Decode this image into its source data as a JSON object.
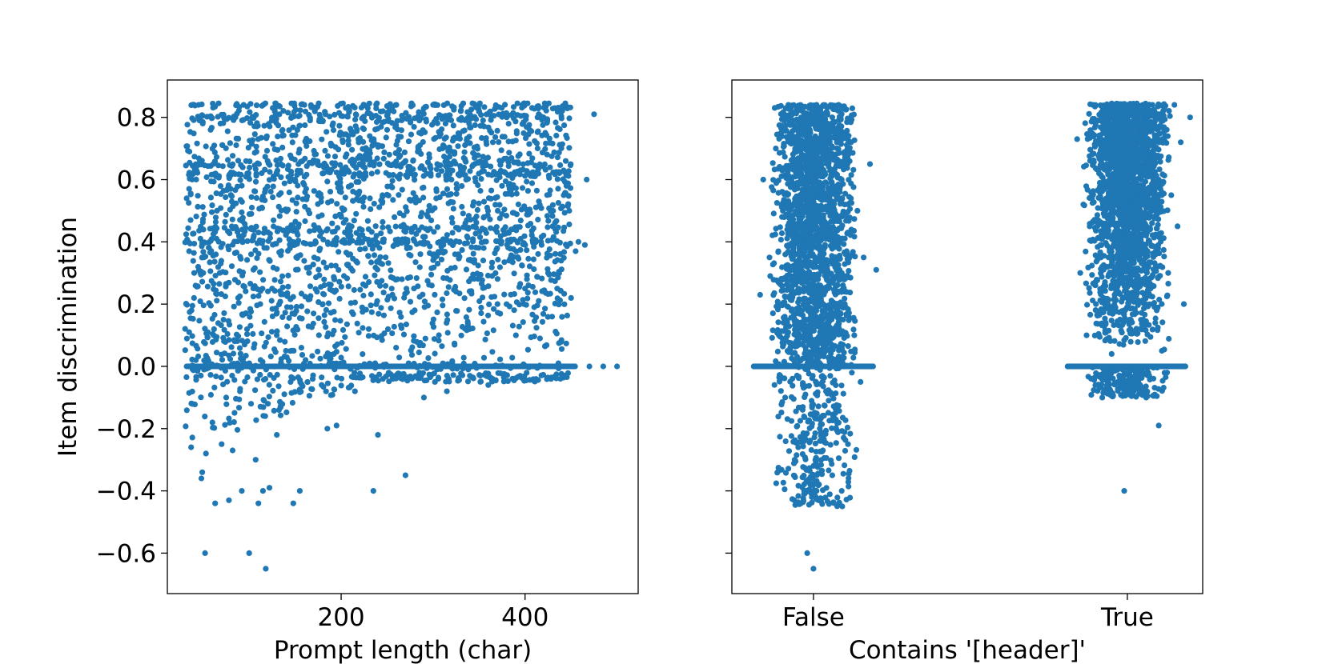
{
  "figure": {
    "point_color": "#1f77b4"
  },
  "chart_data": [
    {
      "type": "scatter",
      "title": "",
      "xlabel": "Prompt length (char)",
      "ylabel": "Item discrimination",
      "xlim": [
        11,
        523
      ],
      "ylim": [
        -0.73,
        0.92
      ],
      "xticks": [
        200,
        400
      ],
      "yticks": [
        -0.6,
        -0.4,
        -0.2,
        0.0,
        0.2,
        0.4,
        0.6,
        0.8
      ],
      "yticklabels": [
        "−0.6",
        "−0.4",
        "−0.2",
        "0.0",
        "0.2",
        "0.4",
        "0.6",
        "0.8"
      ],
      "grid": false,
      "legend": "none",
      "series": [
        {
          "points": [
            [
              32,
              0.54
            ],
            [
              35,
              0.69
            ],
            [
              38,
              0.6
            ],
            [
              40,
              0.22
            ],
            [
              42,
              0.02
            ],
            [
              45,
              0.84
            ],
            [
              46,
              0.79
            ],
            [
              47,
              0.41
            ],
            [
              48,
              -0.36
            ],
            [
              49,
              -0.34
            ],
            [
              50,
              0.3
            ],
            [
              52,
              -0.6
            ],
            [
              53,
              -0.28
            ],
            [
              55,
              0.11
            ],
            [
              58,
              0.76
            ],
            [
              60,
              -0.18
            ],
            [
              63,
              -0.44
            ],
            [
              65,
              0.5
            ],
            [
              68,
              0.3
            ],
            [
              70,
              -0.25
            ],
            [
              72,
              0.15
            ],
            [
              75,
              -0.1
            ],
            [
              78,
              -0.43
            ],
            [
              80,
              0.57
            ],
            [
              82,
              -0.27
            ],
            [
              85,
              0.8
            ],
            [
              88,
              0.22
            ],
            [
              90,
              -0.08
            ],
            [
              92,
              -0.4
            ],
            [
              94,
              0.84
            ],
            [
              95,
              0.07
            ],
            [
              98,
              0.62
            ],
            [
              100,
              -0.6
            ],
            [
              102,
              -0.12
            ],
            [
              105,
              0.42
            ],
            [
              107,
              -0.3
            ],
            [
              110,
              -0.44
            ],
            [
              112,
              0.2
            ],
            [
              115,
              -0.4
            ],
            [
              118,
              -0.65
            ],
            [
              120,
              0.66
            ],
            [
              122,
              -0.39
            ],
            [
              125,
              0.25
            ],
            [
              128,
              0.83
            ],
            [
              130,
              -0.22
            ],
            [
              135,
              0.37
            ],
            [
              140,
              0.05
            ],
            [
              145,
              -0.05
            ],
            [
              148,
              -0.44
            ],
            [
              150,
              0.6
            ],
            [
              155,
              -0.4
            ],
            [
              160,
              0.84
            ],
            [
              165,
              0.3
            ],
            [
              170,
              0.17
            ],
            [
              175,
              0.55
            ],
            [
              180,
              0.2
            ],
            [
              185,
              -0.2
            ],
            [
              190,
              0.71
            ],
            [
              195,
              -0.19
            ],
            [
              200,
              0.48
            ],
            [
              205,
              0.83
            ],
            [
              210,
              0.36
            ],
            [
              215,
              -0.08
            ],
            [
              220,
              0.65
            ],
            [
              225,
              0.84
            ],
            [
              230,
              0.12
            ],
            [
              235,
              -0.4
            ],
            [
              240,
              -0.22
            ],
            [
              245,
              0.55
            ],
            [
              250,
              0.76
            ],
            [
              255,
              0.25
            ],
            [
              260,
              0.84
            ],
            [
              265,
              0.45
            ],
            [
              270,
              -0.35
            ],
            [
              275,
              0.62
            ],
            [
              280,
              0.18
            ],
            [
              285,
              0.79
            ],
            [
              290,
              -0.1
            ],
            [
              295,
              0.5
            ],
            [
              300,
              0.84
            ],
            [
              305,
              0.33
            ],
            [
              310,
              0.7
            ],
            [
              315,
              -0.08
            ],
            [
              320,
              0.6
            ],
            [
              325,
              0.24
            ],
            [
              330,
              0.82
            ],
            [
              335,
              0.46
            ],
            [
              340,
              0.12
            ],
            [
              345,
              0.67
            ],
            [
              350,
              0.84
            ],
            [
              355,
              0.38
            ],
            [
              360,
              -0.06
            ],
            [
              365,
              0.72
            ],
            [
              370,
              0.2
            ],
            [
              375,
              0.58
            ],
            [
              380,
              0.8
            ],
            [
              385,
              0.44
            ],
            [
              390,
              0.1
            ],
            [
              395,
              0.63
            ],
            [
              400,
              0.25
            ],
            [
              405,
              0.76
            ],
            [
              410,
              0.19
            ],
            [
              415,
              0.53
            ],
            [
              420,
              0.8
            ],
            [
              425,
              0.3
            ],
            [
              430,
              0.45
            ],
            [
              435,
              0.25
            ],
            [
              440,
              0.82
            ],
            [
              442,
              0.55
            ],
            [
              445,
              0.58
            ],
            [
              448,
              0.5
            ],
            [
              450,
              0.22
            ],
            [
              455,
              0.37
            ],
            [
              458,
              0.4
            ],
            [
              465,
              0.39
            ],
            [
              467,
              0.6
            ],
            [
              470,
              0.0
            ],
            [
              475,
              0.81
            ],
            [
              485,
              0.0
            ],
            [
              500,
              0.0
            ]
          ]
        }
      ]
    },
    {
      "type": "scatter",
      "title": "",
      "xlabel": "Contains '[header]'",
      "ylabel": "",
      "xlim": [
        -0.26,
        1.24
      ],
      "ylim": [
        -0.73,
        0.92
      ],
      "xticks": [
        0,
        1
      ],
      "xticklabels": [
        "False",
        "True"
      ],
      "yticks": [
        -0.6,
        -0.4,
        -0.2,
        0.0,
        0.2,
        0.4,
        0.6,
        0.8
      ],
      "grid": false,
      "legend": "none",
      "series": [
        {
          "name": "False",
          "x_center": 0,
          "points": [
            [
              -0.19,
              0.0
            ],
            [
              -0.17,
              0.23
            ],
            [
              -0.16,
              0.6
            ],
            [
              -0.14,
              0.35
            ],
            [
              -0.12,
              0.7
            ],
            [
              -0.11,
              0.1
            ],
            [
              -0.1,
              0.48
            ],
            [
              -0.09,
              -0.1
            ],
            [
              -0.08,
              0.84
            ],
            [
              -0.07,
              0.25
            ],
            [
              -0.06,
              -0.3
            ],
            [
              -0.05,
              0.62
            ],
            [
              -0.04,
              -0.44
            ],
            [
              -0.03,
              0.78
            ],
            [
              -0.02,
              -0.6
            ],
            [
              -0.01,
              0.15
            ],
            [
              0.0,
              -0.65
            ],
            [
              0.0,
              0.45
            ],
            [
              0.01,
              -0.4
            ],
            [
              0.01,
              0.84
            ],
            [
              0.02,
              -0.2
            ],
            [
              0.02,
              0.55
            ],
            [
              0.03,
              0.05
            ],
            [
              0.03,
              -0.27
            ],
            [
              0.04,
              0.68
            ],
            [
              0.04,
              -0.08
            ],
            [
              0.05,
              0.3
            ],
            [
              0.05,
              -0.44
            ],
            [
              0.06,
              0.8
            ],
            [
              0.06,
              -0.35
            ],
            [
              0.07,
              0.4
            ],
            [
              0.07,
              -0.15
            ],
            [
              0.08,
              0.84
            ],
            [
              0.08,
              0.02
            ],
            [
              0.09,
              -0.4
            ],
            [
              0.09,
              0.6
            ],
            [
              0.1,
              0.2
            ],
            [
              0.11,
              -0.25
            ],
            [
              0.12,
              0.72
            ],
            [
              0.13,
              0.1
            ],
            [
              0.14,
              0.5
            ],
            [
              0.15,
              -0.05
            ],
            [
              0.16,
              0.35
            ],
            [
              0.17,
              0.0
            ],
            [
              0.18,
              0.65
            ],
            [
              0.19,
              0.0
            ],
            [
              0.2,
              0.31
            ]
          ]
        },
        {
          "name": "True",
          "x_center": 1,
          "points": [
            [
              -0.19,
              0.0
            ],
            [
              -0.16,
              0.73
            ],
            [
              -0.15,
              0.3
            ],
            [
              -0.14,
              0.52
            ],
            [
              -0.13,
              0.1
            ],
            [
              -0.12,
              0.45
            ],
            [
              -0.11,
              0.84
            ],
            [
              -0.1,
              0.2
            ],
            [
              -0.09,
              0.62
            ],
            [
              -0.08,
              -0.1
            ],
            [
              -0.07,
              0.77
            ],
            [
              -0.06,
              0.35
            ],
            [
              -0.05,
              0.04
            ],
            [
              -0.04,
              0.84
            ],
            [
              -0.03,
              -0.05
            ],
            [
              -0.02,
              0.55
            ],
            [
              -0.01,
              0.18
            ],
            [
              -0.01,
              -0.4
            ],
            [
              0.0,
              0.84
            ],
            [
              0.0,
              0.4
            ],
            [
              0.01,
              0.7
            ],
            [
              0.01,
              0.12
            ],
            [
              0.02,
              -0.08
            ],
            [
              0.02,
              0.6
            ],
            [
              0.03,
              0.28
            ],
            [
              0.03,
              0.84
            ],
            [
              0.04,
              -0.06
            ],
            [
              0.04,
              0.5
            ],
            [
              0.05,
              0.8
            ],
            [
              0.05,
              0.15
            ],
            [
              0.06,
              -0.1
            ],
            [
              0.06,
              0.42
            ],
            [
              0.07,
              0.67
            ],
            [
              0.07,
              0.25
            ],
            [
              0.08,
              0.84
            ],
            [
              0.09,
              0.36
            ],
            [
              0.1,
              0.6
            ],
            [
              0.1,
              -0.19
            ],
            [
              0.11,
              0.05
            ],
            [
              0.12,
              0.74
            ],
            [
              0.13,
              0.3
            ],
            [
              0.14,
              0.55
            ],
            [
              0.15,
              0.84
            ],
            [
              0.16,
              0.45
            ],
            [
              0.17,
              0.0
            ],
            [
              0.17,
              0.72
            ],
            [
              0.18,
              0.2
            ],
            [
              0.2,
              0.8
            ]
          ]
        }
      ]
    }
  ]
}
